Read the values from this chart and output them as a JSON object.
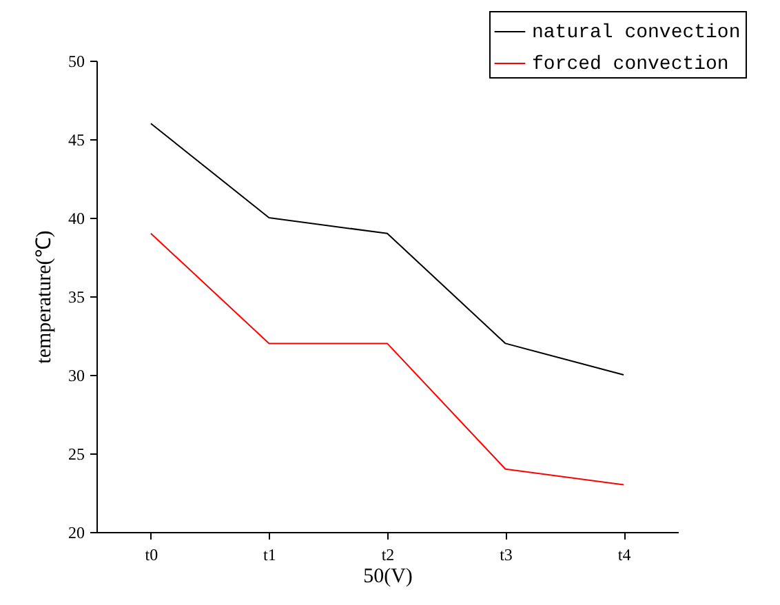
{
  "chart_data": {
    "type": "line",
    "xlabel": "50(V)",
    "ylabel": "temperature(℃)",
    "categories": [
      "t0",
      "t1",
      "t2",
      "t3",
      "t4"
    ],
    "series": [
      {
        "name": "natural convection",
        "color": "#000000",
        "values": [
          46,
          40,
          39,
          32,
          30
        ]
      },
      {
        "name": "forced convection",
        "color": "#ff0000",
        "values": [
          39,
          32,
          32,
          24,
          23
        ]
      }
    ],
    "ylim": [
      20,
      50
    ],
    "yticks": [
      20,
      25,
      30,
      35,
      40,
      45,
      50
    ],
    "grid": false,
    "legend": "top right",
    "line_style": "solid",
    "marker": "none"
  }
}
